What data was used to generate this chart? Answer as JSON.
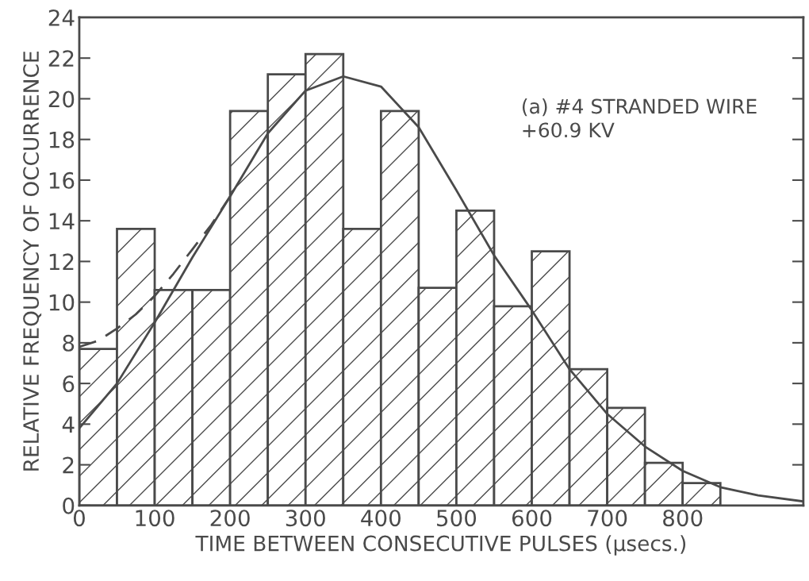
{
  "chart_data": {
    "type": "histogram",
    "xlabel": "TIME BETWEEN CONSECUTIVE PULSES (μsecs.)",
    "ylabel": "RELATIVE FREQUENCY OF OCCURRENCE",
    "annotations": [
      "(a) #4 STRANDED WIRE\n+60.9 KV"
    ],
    "bins": [
      0,
      50,
      100,
      150,
      200,
      250,
      300,
      350,
      400,
      450,
      500,
      550,
      600,
      650,
      700,
      750,
      800,
      850
    ],
    "series": [
      {
        "color": "#4a4a4a",
        "values": [
          7.7,
          13.6,
          10.6,
          10.6,
          19.4,
          21.2,
          22.2,
          13.6,
          19.4,
          10.7,
          14.5,
          9.8,
          12.5,
          6.7,
          4.8,
          2.1,
          1.1
        ]
      },
      {
        "type": "line",
        "color": "#4a4a4a",
        "line_style": "solid",
        "x": [
          0,
          50,
          100,
          150,
          200,
          250,
          300,
          350,
          400,
          450,
          500,
          550,
          600,
          650,
          700,
          750,
          800,
          850,
          900,
          960
        ],
        "values": [
          3.8,
          6.0,
          9.0,
          12.2,
          15.2,
          18.3,
          20.4,
          21.1,
          20.6,
          18.6,
          15.5,
          12.3,
          9.6,
          6.7,
          4.5,
          2.9,
          1.7,
          0.9,
          0.5,
          0.2
        ]
      },
      {
        "type": "line",
        "color": "#4a4a4a",
        "line_style": "dashed",
        "x": [
          0,
          25,
          50,
          75,
          100,
          125,
          150,
          175,
          200
        ],
        "values": [
          7.8,
          8.1,
          8.7,
          9.4,
          10.3,
          11.4,
          12.6,
          13.8,
          15.2
        ]
      }
    ],
    "xlim": [
      0,
      960
    ],
    "ylim": [
      0,
      24
    ],
    "xticks": [
      0,
      100,
      200,
      300,
      400,
      500,
      600,
      700,
      800
    ],
    "yticks": [
      0,
      2,
      4,
      6,
      8,
      10,
      12,
      14,
      16,
      18,
      20,
      22,
      24
    ],
    "grid": false,
    "legend": false
  }
}
